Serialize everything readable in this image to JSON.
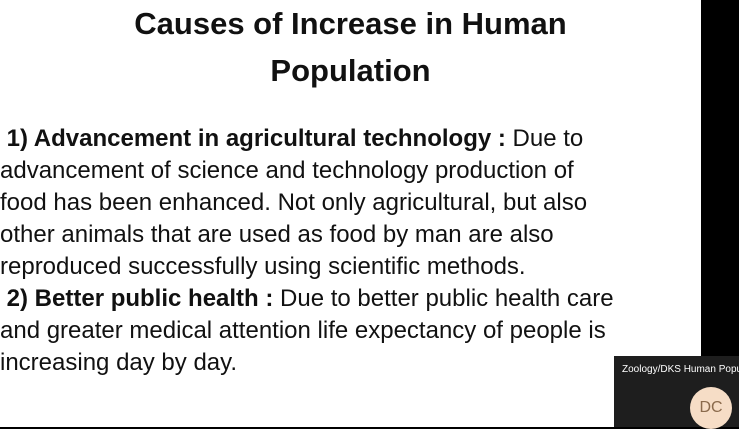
{
  "slide": {
    "title_line1": "Causes of Increase in Human",
    "title_line2": "Population",
    "point1": {
      "heading": "1)  Advancement in agricultural technology :",
      "line1_rest": " Due to",
      "line2": "advancement of science and technology production of",
      "line3": "food has been enhanced. Not only agricultural, but also",
      "line4": "other animals that are used as food by man are also",
      "line5": "reproduced successfully using scientific methods."
    },
    "point2": {
      "heading": "2) Better public health :",
      "line1_rest": " Due to better public health care",
      "line2": "and greater medical attention life expectancy  of people is",
      "line3": "increasing day by day."
    }
  },
  "participant": {
    "name": "Zoology/DKS Human Popu",
    "initials": "DC"
  }
}
